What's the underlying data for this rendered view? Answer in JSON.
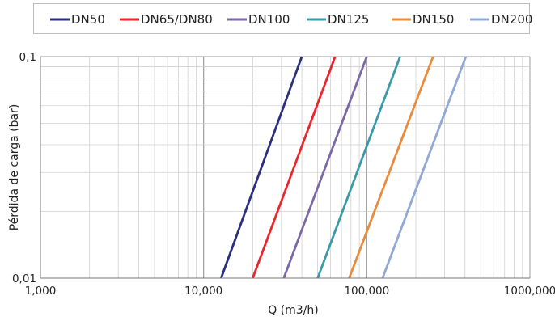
{
  "chart_data": {
    "type": "line",
    "xlabel": "Q (m3/h)",
    "ylabel": "Pérdida de carga (bar)",
    "x_scale": "log",
    "y_scale": "log",
    "xlim": [
      1,
      1000
    ],
    "ylim": [
      0.01,
      0.1
    ],
    "x_tick_values": [
      1,
      10,
      100,
      1000
    ],
    "x_tick_labels": [
      "1,000",
      "10,000",
      "100,000",
      "1000,000"
    ],
    "y_tick_values": [
      0.01,
      0.1
    ],
    "y_tick_labels": [
      "0,01",
      "0,1"
    ],
    "grid": true,
    "legend_position": "top",
    "series": [
      {
        "name": "DN50",
        "color": "#2b2f7e",
        "x": [
          12.8,
          40
        ],
        "y": [
          0.01,
          0.1
        ]
      },
      {
        "name": "DN65/DN80",
        "color": "#e8262b",
        "x": [
          20,
          64
        ],
        "y": [
          0.01,
          0.1
        ]
      },
      {
        "name": "DN100",
        "color": "#7b68a6",
        "x": [
          31,
          100
        ],
        "y": [
          0.01,
          0.1
        ]
      },
      {
        "name": "DN125",
        "color": "#3a9aa8",
        "x": [
          50,
          160
        ],
        "y": [
          0.01,
          0.1
        ]
      },
      {
        "name": "DN150",
        "color": "#e98a3c",
        "x": [
          78,
          255
        ],
        "y": [
          0.01,
          0.1
        ]
      },
      {
        "name": "DN200",
        "color": "#8fa8d4",
        "x": [
          125,
          405
        ],
        "y": [
          0.01,
          0.1
        ]
      }
    ]
  }
}
